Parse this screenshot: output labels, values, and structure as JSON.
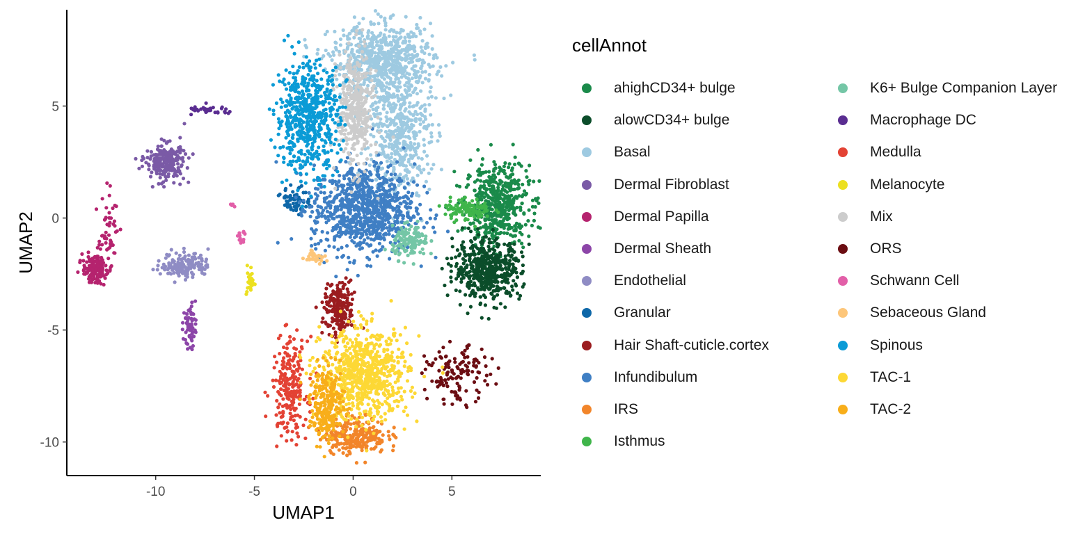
{
  "chart_data": {
    "type": "scatter",
    "title": "",
    "xlabel": "UMAP1",
    "ylabel": "UMAP2",
    "xlim": [
      -14.5,
      9.5
    ],
    "ylim": [
      -11.5,
      9.3
    ],
    "xticks": [
      -10,
      -5,
      0,
      5
    ],
    "yticks": [
      -10,
      -5,
      0,
      5
    ],
    "xtick_labels": [
      "-10",
      "-5",
      "0",
      "5"
    ],
    "ytick_labels": [
      "-10",
      "-5",
      "0",
      "5"
    ],
    "grid": false,
    "legend": {
      "title": "cellAnnot",
      "placement": "right",
      "columns": 2
    },
    "series": [
      {
        "name": "ahighCD34+ bulge",
        "color": "#1a8a4a",
        "clusters": [
          {
            "cx": 7.3,
            "cy": 0.6,
            "sx": 0.8,
            "sy": 0.9,
            "n": 520
          }
        ]
      },
      {
        "name": "alowCD34+ bulge",
        "color": "#0b4d2a",
        "clusters": [
          {
            "cx": 6.8,
            "cy": -2.3,
            "sx": 0.85,
            "sy": 0.65,
            "n": 520
          }
        ]
      },
      {
        "name": "Basal",
        "color": "#9ecae1",
        "clusters": [
          {
            "cx": 1.5,
            "cy": 7.0,
            "sx": 1.3,
            "sy": 0.8,
            "n": 700
          },
          {
            "cx": 2.3,
            "cy": 3.8,
            "sx": 0.8,
            "sy": 1.4,
            "n": 500
          }
        ]
      },
      {
        "name": "Dermal Fibroblast",
        "color": "#7a5aa6",
        "clusters": [
          {
            "cx": -9.5,
            "cy": 2.5,
            "sx": 0.5,
            "sy": 0.4,
            "n": 240
          }
        ]
      },
      {
        "name": "Dermal Papilla",
        "color": "#b5236e",
        "clusters": [
          {
            "cx": -13.1,
            "cy": -2.3,
            "sx": 0.3,
            "sy": 0.3,
            "n": 160
          },
          {
            "cx": -12.4,
            "cy": -0.5,
            "sx": 0.25,
            "sy": 0.8,
            "n": 50
          }
        ]
      },
      {
        "name": "Dermal Sheath",
        "color": "#8c45a8",
        "clusters": [
          {
            "cx": -8.3,
            "cy": -4.8,
            "sx": 0.15,
            "sy": 0.5,
            "n": 60
          }
        ]
      },
      {
        "name": "Endothelial",
        "color": "#8f8cc4",
        "clusters": [
          {
            "cx": -8.5,
            "cy": -2.1,
            "sx": 0.6,
            "sy": 0.3,
            "n": 150
          }
        ]
      },
      {
        "name": "Granular",
        "color": "#0e67a8",
        "clusters": [
          {
            "cx": -2.9,
            "cy": 0.8,
            "sx": 0.35,
            "sy": 0.3,
            "n": 70
          }
        ]
      },
      {
        "name": "Hair Shaft-cuticle.cortex",
        "color": "#9b1c1f",
        "clusters": [
          {
            "cx": -0.7,
            "cy": -4.1,
            "sx": 0.4,
            "sy": 0.6,
            "n": 200
          }
        ]
      },
      {
        "name": "Infundibulum",
        "color": "#3f7fc4",
        "clusters": [
          {
            "cx": 0.5,
            "cy": 0.4,
            "sx": 1.3,
            "sy": 1.0,
            "n": 900
          }
        ]
      },
      {
        "name": "IRS",
        "color": "#f2852a",
        "clusters": [
          {
            "cx": 0.1,
            "cy": -9.7,
            "sx": 0.8,
            "sy": 0.4,
            "n": 260
          }
        ]
      },
      {
        "name": "Isthmus",
        "color": "#3fb54a",
        "clusters": [
          {
            "cx": 5.8,
            "cy": 0.4,
            "sx": 0.6,
            "sy": 0.25,
            "n": 110
          }
        ]
      },
      {
        "name": "K6+ Bulge Companion Layer",
        "color": "#74c6a6",
        "clusters": [
          {
            "cx": 2.9,
            "cy": -1.1,
            "sx": 0.45,
            "sy": 0.35,
            "n": 130
          }
        ]
      },
      {
        "name": "Macrophage DC",
        "color": "#5a2d91",
        "clusters": [
          {
            "cx": -7.2,
            "cy": 4.8,
            "sx": 0.6,
            "sy": 0.1,
            "n": 35
          }
        ]
      },
      {
        "name": "Medulla",
        "color": "#e34234",
        "clusters": [
          {
            "cx": -3.2,
            "cy": -7.6,
            "sx": 0.45,
            "sy": 1.1,
            "n": 220
          }
        ]
      },
      {
        "name": "Melanocyte",
        "color": "#ece020",
        "clusters": [
          {
            "cx": -5.2,
            "cy": -2.8,
            "sx": 0.1,
            "sy": 0.35,
            "n": 25
          }
        ]
      },
      {
        "name": "Mix",
        "color": "#cccccc",
        "clusters": [
          {
            "cx": 0.1,
            "cy": 4.8,
            "sx": 0.45,
            "sy": 1.3,
            "n": 380
          }
        ]
      },
      {
        "name": "ORS",
        "color": "#6b0d12",
        "clusters": [
          {
            "cx": 5.3,
            "cy": -7.0,
            "sx": 0.8,
            "sy": 0.6,
            "n": 130
          }
        ]
      },
      {
        "name": "Schwann Cell",
        "color": "#e25fa8",
        "clusters": [
          {
            "cx": -5.7,
            "cy": -0.9,
            "sx": 0.15,
            "sy": 0.15,
            "n": 15
          },
          {
            "cx": -6.1,
            "cy": 0.6,
            "sx": 0.1,
            "sy": 0.05,
            "n": 6
          }
        ]
      },
      {
        "name": "Sebaceous Gland",
        "color": "#fdc67a",
        "clusters": [
          {
            "cx": -1.9,
            "cy": -1.7,
            "sx": 0.25,
            "sy": 0.15,
            "n": 30
          }
        ]
      },
      {
        "name": "Spinous",
        "color": "#0b9bd6",
        "clusters": [
          {
            "cx": -2.3,
            "cy": 4.5,
            "sx": 0.8,
            "sy": 1.2,
            "n": 600
          }
        ]
      },
      {
        "name": "TAC-1",
        "color": "#fdd835",
        "clusters": [
          {
            "cx": 0.6,
            "cy": -7.0,
            "sx": 1.1,
            "sy": 1.0,
            "n": 750
          }
        ]
      },
      {
        "name": "TAC-2",
        "color": "#f8ae1a",
        "clusters": [
          {
            "cx": -1.3,
            "cy": -8.3,
            "sx": 0.45,
            "sy": 0.8,
            "n": 250
          }
        ]
      }
    ]
  }
}
